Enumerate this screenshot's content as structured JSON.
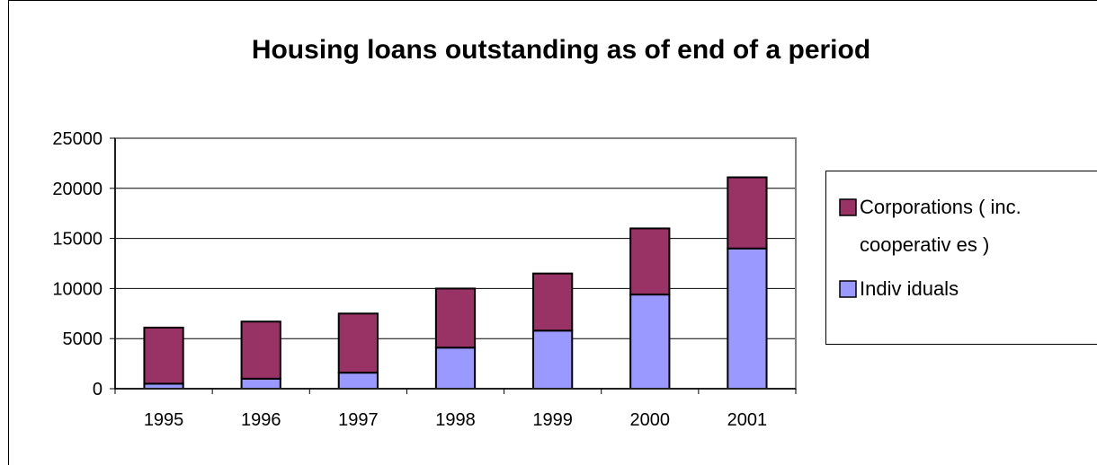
{
  "chart_data": {
    "type": "bar",
    "stacked": true,
    "title": "Housing loans outstanding as of end of a period",
    "xlabel": "",
    "ylabel": "",
    "categories": [
      "1995",
      "1996",
      "1997",
      "1998",
      "1999",
      "2000",
      "2001"
    ],
    "series": [
      {
        "name": "Individuals",
        "legend_lines": [
          "Indiv iduals"
        ],
        "color": "#9999ff",
        "values": [
          500,
          1000,
          1600,
          4100,
          5800,
          9400,
          14000
        ]
      },
      {
        "name": "Corporations ( inc. cooperativ es )",
        "legend_lines": [
          "Corporations ( inc.",
          "cooperativ es )"
        ],
        "color": "#993366",
        "values": [
          5600,
          5700,
          5900,
          5900,
          5700,
          6600,
          7100
        ]
      }
    ],
    "yticks": [
      0,
      5000,
      10000,
      15000,
      20000,
      25000
    ],
    "ylim": [
      0,
      25000
    ],
    "grid": true,
    "plot_background": "#ffffff",
    "legend_position": "right"
  }
}
